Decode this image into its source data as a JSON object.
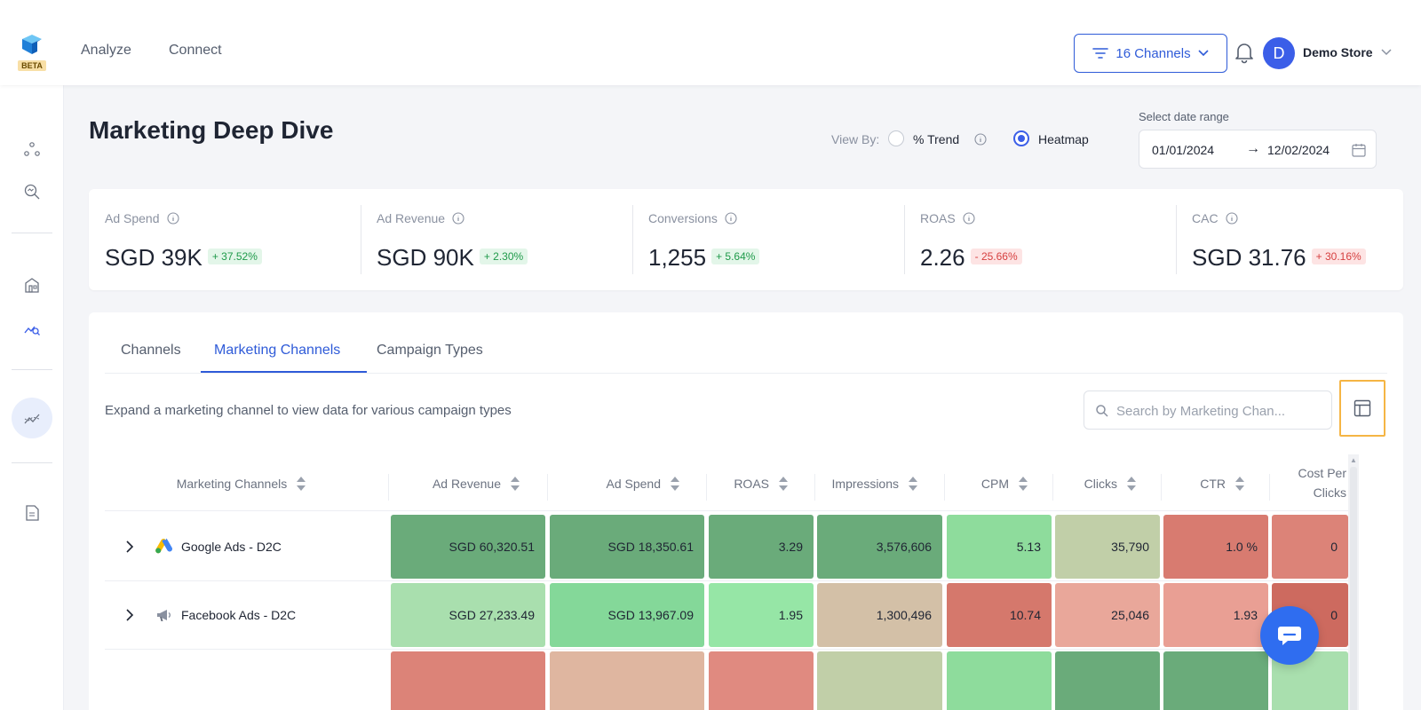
{
  "nav": {
    "analyze": "Analyze",
    "connect": "Connect",
    "beta": "BETA"
  },
  "header": {
    "channels_label": "16 Channels",
    "avatar_initial": "D",
    "store_name": "Demo Store"
  },
  "page": {
    "title": "Marketing Deep Dive",
    "view_by_label": "View By:",
    "view_options": [
      "% Trend",
      "Heatmap"
    ],
    "selected_view": "Heatmap",
    "date_range_label": "Select date range",
    "date_start": "01/01/2024",
    "date_arrow": "→",
    "date_end": "12/02/2024"
  },
  "kpis": [
    {
      "label": "Ad Spend",
      "value": "SGD 39K",
      "change": "+ 37.52%",
      "trend": "up"
    },
    {
      "label": "Ad Revenue",
      "value": "SGD 90K",
      "change": "+ 2.30%",
      "trend": "up"
    },
    {
      "label": "Conversions",
      "value": "1,255",
      "change": "+ 5.64%",
      "trend": "up"
    },
    {
      "label": "ROAS",
      "value": "2.26",
      "change": "- 25.66%",
      "trend": "down"
    },
    {
      "label": "CAC",
      "value": "SGD 31.76",
      "change": "+ 30.16%",
      "trend": "down"
    }
  ],
  "tabs": [
    {
      "label": "Channels"
    },
    {
      "label": "Marketing Channels",
      "active": true
    },
    {
      "label": "Campaign Types"
    }
  ],
  "table": {
    "hint": "Expand a marketing channel to view data for various campaign types",
    "search_placeholder": "Search by Marketing Chan...",
    "columns": [
      "Marketing Channels",
      "Ad Revenue",
      "Ad Spend",
      "ROAS",
      "Impressions",
      "CPM",
      "Clicks",
      "CTR",
      "Cost Per Clicks"
    ],
    "rows": [
      {
        "name": "Google Ads - D2C",
        "icon": "google-ads-icon",
        "cells": [
          {
            "text": "SGD 60,320.51",
            "color": "#6aab7a"
          },
          {
            "text": "SGD 18,350.61",
            "color": "#6aab7a"
          },
          {
            "text": "3.29",
            "color": "#6aab7a"
          },
          {
            "text": "3,576,606",
            "color": "#6aab7a"
          },
          {
            "text": "5.13",
            "color": "#8edc9c"
          },
          {
            "text": "35,790",
            "color": "#c1cfa8"
          },
          {
            "text": "1.0 %",
            "color": "#d87b70"
          },
          {
            "text": "0",
            "color": "#dc8378"
          }
        ]
      },
      {
        "name": "Facebook Ads - D2C",
        "icon": "megaphone-icon",
        "cells": [
          {
            "text": "SGD 27,233.49",
            "color": "#a9dfae"
          },
          {
            "text": "SGD 13,967.09",
            "color": "#84d899"
          },
          {
            "text": "1.95",
            "color": "#96e6a6"
          },
          {
            "text": "1,300,496",
            "color": "#d3c0a7"
          },
          {
            "text": "10.74",
            "color": "#d5786c"
          },
          {
            "text": "25,046",
            "color": "#e9a79a"
          },
          {
            "text": "1.93",
            "color": "#e99f94"
          },
          {
            "text": "0",
            "color": "#cd6a5f"
          }
        ]
      },
      {
        "name": "",
        "icon": "",
        "cells": [
          {
            "text": "",
            "color": "#dc8378"
          },
          {
            "text": "",
            "color": "#dfb6a0"
          },
          {
            "text": "",
            "color": "#e08a80"
          },
          {
            "text": "",
            "color": "#c1cfa8"
          },
          {
            "text": "",
            "color": "#8edc9c"
          },
          {
            "text": "",
            "color": "#6aab7a"
          },
          {
            "text": "",
            "color": "#6aab7a"
          },
          {
            "text": "",
            "color": "#a9dfae"
          }
        ]
      }
    ]
  }
}
